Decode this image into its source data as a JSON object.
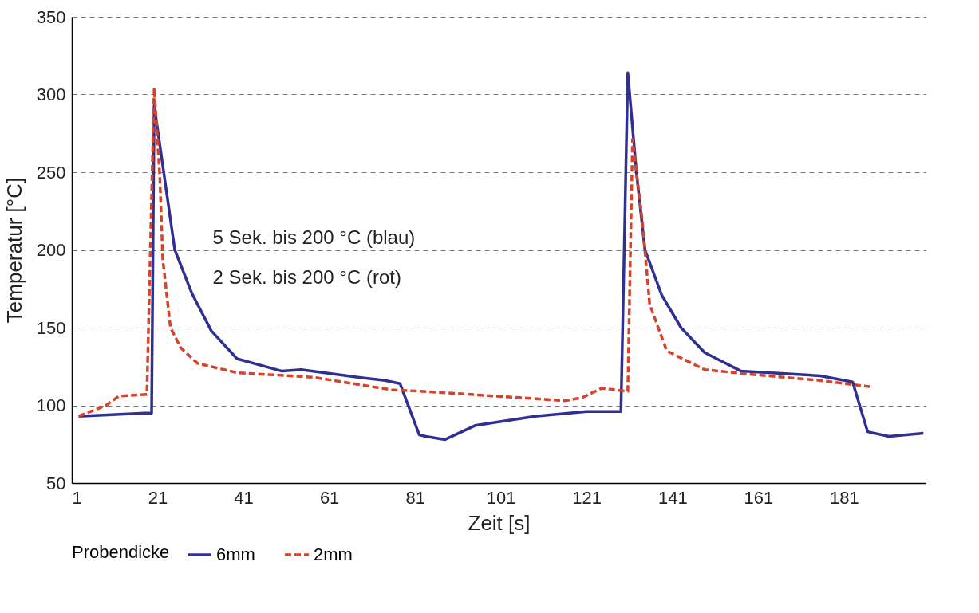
{
  "chart_data": {
    "type": "line",
    "xlabel": "Zeit [s]",
    "ylabel": "Temperatur [°C]",
    "legend_title": "Probendicke",
    "xlim": [
      1,
      200
    ],
    "xticks": [
      1,
      21,
      41,
      61,
      81,
      101,
      121,
      141,
      161,
      181
    ],
    "ylim": [
      50,
      350
    ],
    "yticks": [
      50,
      100,
      150,
      200,
      250,
      300,
      350
    ],
    "grid": "y",
    "legend": "bottom",
    "annotations": [
      "5 Sek. bis 200 °C (blau)",
      "2 Sek. bis 200 °C (rot)"
    ],
    "series": [
      {
        "name": "6mm",
        "color": "#2e3192",
        "line_style": "solid",
        "x": [
          2.6,
          18,
          19.6,
          20.2,
          25,
          29,
          33.5,
          39.5,
          50,
          54.5,
          68,
          74,
          77.5,
          82,
          83.5,
          88,
          95,
          109,
          121,
          129,
          130.6,
          132.6,
          134.6,
          138.5,
          143,
          148.5,
          157,
          175.5,
          183,
          186.5,
          191.5,
          199.5
        ],
        "values": [
          93,
          95,
          95,
          293,
          200,
          172,
          148,
          130,
          122,
          123,
          118,
          116,
          114,
          81,
          80,
          78,
          87,
          93,
          96,
          96,
          314,
          250,
          200,
          171,
          150,
          134,
          122,
          119,
          115,
          83,
          80,
          82
        ]
      },
      {
        "name": "2mm",
        "color": "#d7432a",
        "line_style": "dashed",
        "x": [
          2.6,
          9,
          12,
          18.5,
          20.2,
          21.5,
          22.2,
          24,
          26.4,
          30.3,
          39.5,
          57.5,
          75.5,
          83,
          116,
          120,
          124.5,
          130.6,
          131.7,
          134,
          135.7,
          139.7,
          148.5,
          159,
          175.5,
          187
        ],
        "values": [
          93,
          100,
          106,
          107,
          304,
          248,
          194,
          150,
          137,
          127,
          121,
          118,
          110,
          109,
          103,
          105,
          111,
          109,
          271,
          218,
          165,
          135,
          123,
          120,
          116,
          112
        ]
      }
    ]
  }
}
